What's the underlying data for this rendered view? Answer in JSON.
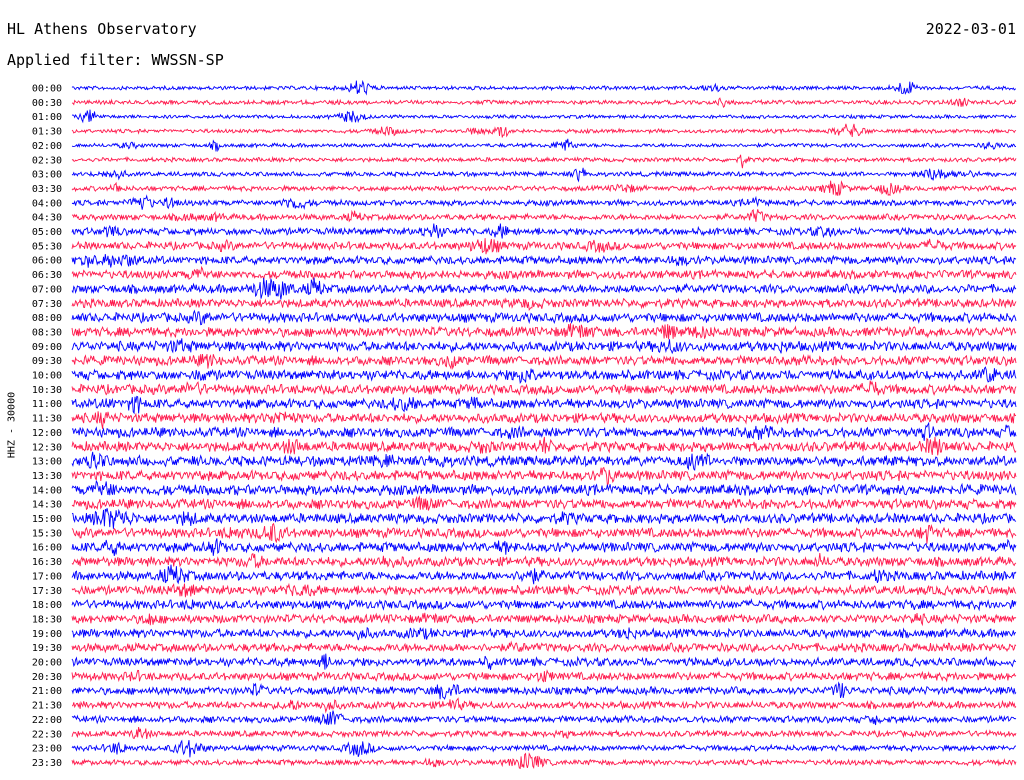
{
  "header": {
    "title": "HL Athens Observatory",
    "date": "2022-03-01",
    "filter": "Applied filter: WWSSN-SP"
  },
  "chart_data": {
    "type": "line",
    "title": "HL Athens Observatory",
    "subtitle": "Applied filter: WWSSN-SP",
    "ylabel": "HHZ - 30000",
    "row_labels": [
      "00:00",
      "00:30",
      "01:00",
      "01:30",
      "02:00",
      "02:30",
      "03:00",
      "03:30",
      "04:00",
      "04:30",
      "05:00",
      "05:30",
      "06:00",
      "06:30",
      "07:00",
      "07:30",
      "08:00",
      "08:30",
      "09:00",
      "09:30",
      "10:00",
      "10:30",
      "11:00",
      "11:30",
      "12:00",
      "12:30",
      "13:00",
      "13:30",
      "14:00",
      "14:30",
      "15:00",
      "15:30",
      "16:00",
      "16:30",
      "17:00",
      "17:30",
      "18:00",
      "18:30",
      "19:00",
      "19:30",
      "20:00",
      "20:30",
      "21:00",
      "21:30",
      "22:00",
      "22:30",
      "23:00",
      "23:30"
    ],
    "row_noise_level": [
      0.18,
      0.22,
      0.15,
      0.18,
      0.18,
      0.22,
      0.25,
      0.3,
      0.38,
      0.42,
      0.55,
      0.62,
      0.65,
      0.7,
      0.72,
      0.72,
      0.8,
      0.82,
      0.85,
      0.8,
      0.85,
      0.82,
      0.8,
      0.82,
      0.85,
      0.85,
      0.88,
      0.85,
      0.9,
      0.85,
      0.85,
      0.82,
      0.82,
      0.8,
      0.78,
      0.78,
      0.75,
      0.72,
      0.7,
      0.7,
      0.68,
      0.65,
      0.6,
      0.55,
      0.5,
      0.42,
      0.38,
      0.35
    ],
    "colors": [
      "#0000ff",
      "#ff1a4d"
    ]
  }
}
